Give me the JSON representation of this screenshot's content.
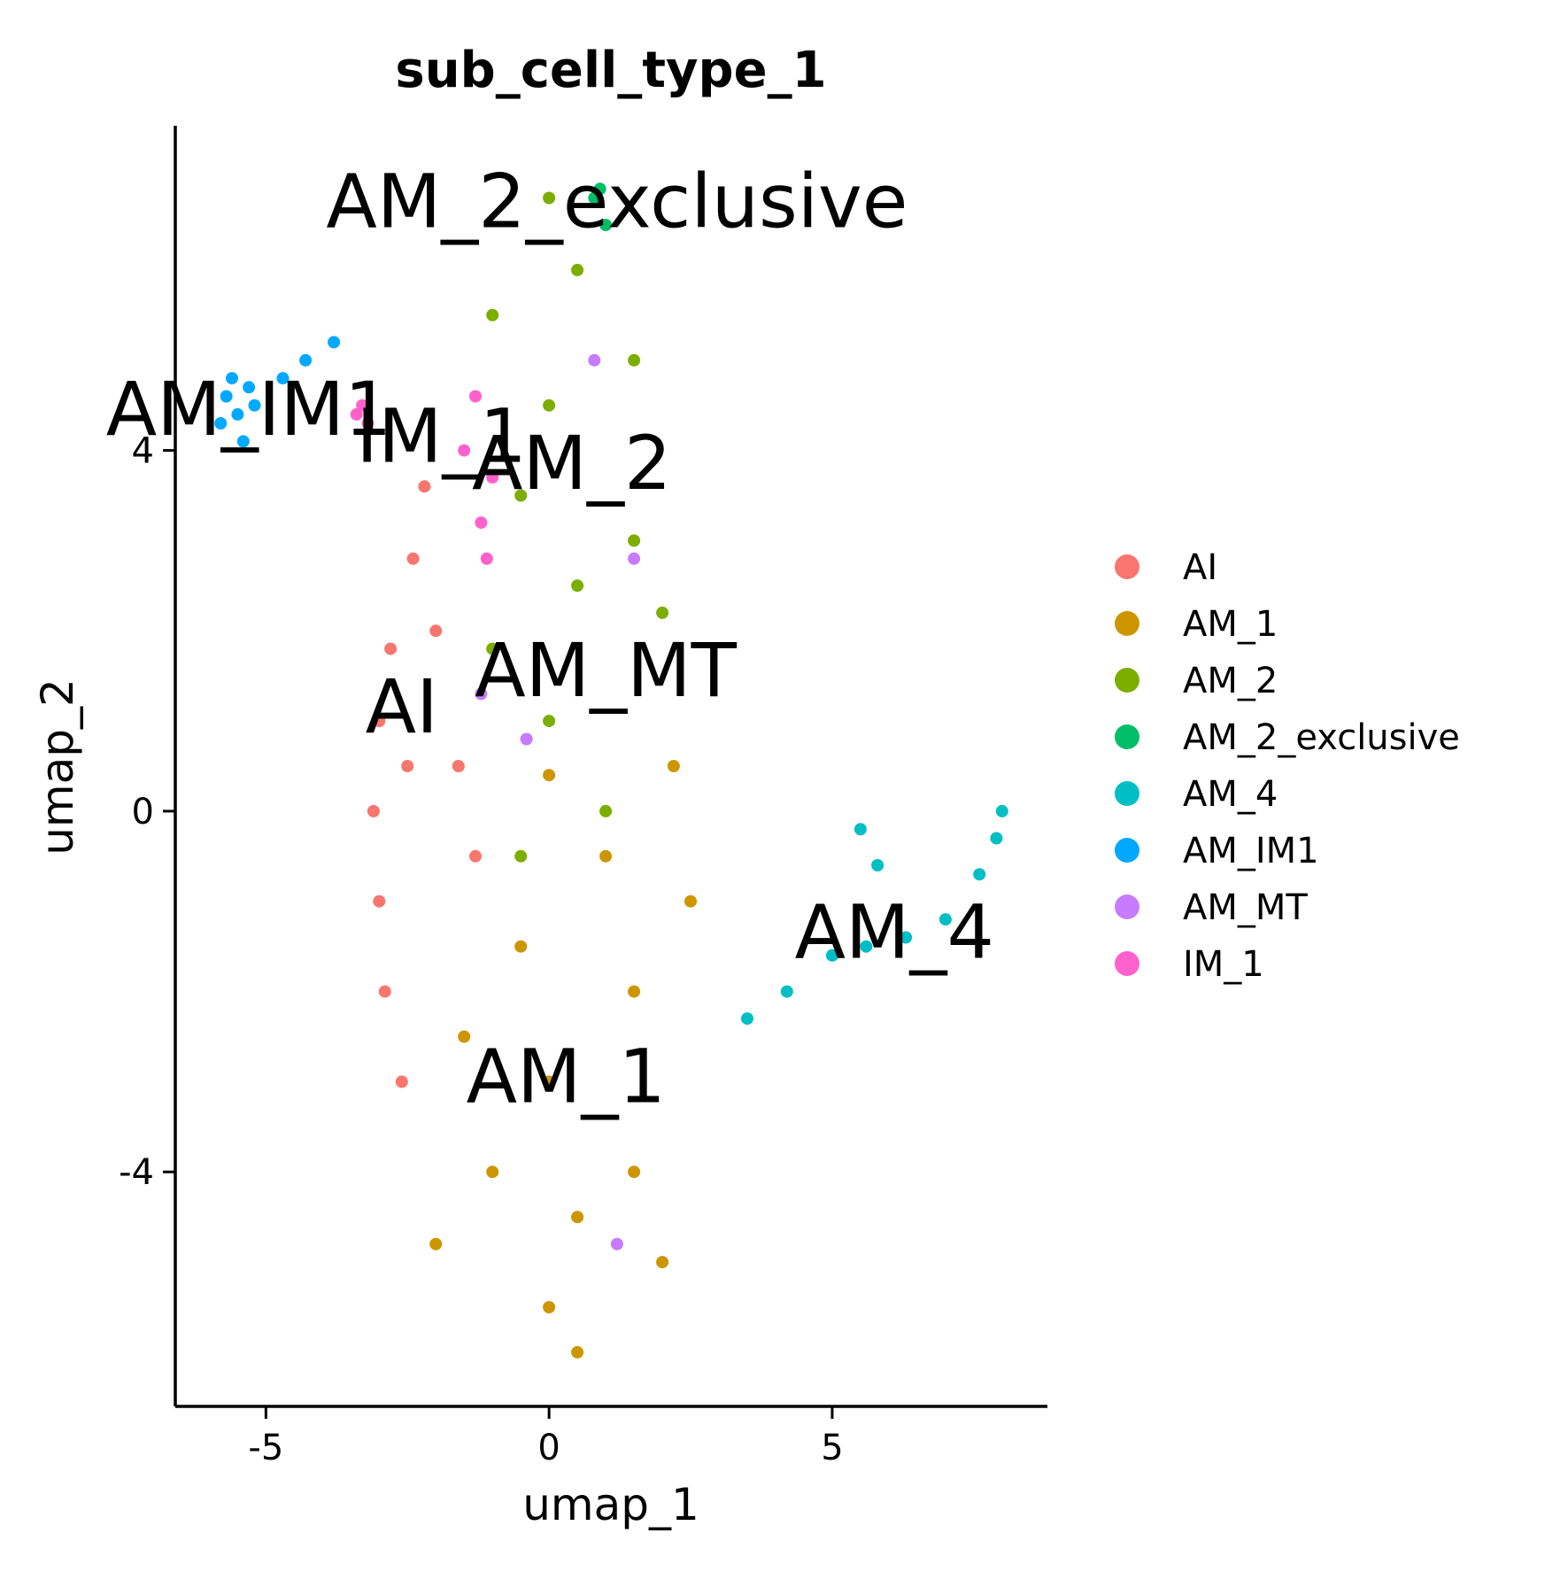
{
  "chart_data": {
    "type": "scatter",
    "title": "sub_cell_type_1",
    "xlabel": "umap_1",
    "ylabel": "umap_2",
    "xlim": [
      -6.6,
      8.8
    ],
    "ylim": [
      -6.6,
      7.6
    ],
    "x_ticks": [
      -5,
      0,
      5
    ],
    "x_tick_labels": [
      "-5",
      "0",
      "5"
    ],
    "y_ticks": [
      -4,
      0,
      4
    ],
    "y_tick_labels": [
      "-4",
      "0",
      "4"
    ],
    "grid": false,
    "legend_position": "right",
    "series": [
      {
        "name": "AI",
        "color": "#F8766D",
        "points": [
          [
            -2.8,
            1.8
          ],
          [
            -3.0,
            1.0
          ],
          [
            -3.1,
            0.0
          ],
          [
            -3.0,
            -1.0
          ],
          [
            -2.9,
            -2.0
          ],
          [
            -2.6,
            -3.0
          ],
          [
            -2.4,
            2.8
          ],
          [
            -2.2,
            3.6
          ],
          [
            -2.0,
            2.0
          ],
          [
            -1.6,
            0.5
          ],
          [
            -1.3,
            -0.5
          ],
          [
            -2.5,
            0.5
          ]
        ]
      },
      {
        "name": "AM_1",
        "color": "#CD9600",
        "points": [
          [
            0.0,
            -5.5
          ],
          [
            0.5,
            -4.5
          ],
          [
            -1.0,
            -4.0
          ],
          [
            1.5,
            -4.0
          ],
          [
            0.0,
            -3.0
          ],
          [
            -1.5,
            -2.5
          ],
          [
            1.5,
            -2.0
          ],
          [
            2.5,
            -1.0
          ],
          [
            1.0,
            -0.5
          ],
          [
            -0.5,
            -1.5
          ],
          [
            2.2,
            0.5
          ],
          [
            0.0,
            0.4
          ],
          [
            -2.0,
            -4.8
          ],
          [
            2.0,
            -5.0
          ],
          [
            0.5,
            -6.0
          ]
        ]
      },
      {
        "name": "AM_2",
        "color": "#7CAE00",
        "points": [
          [
            0.0,
            6.8
          ],
          [
            0.5,
            6.0
          ],
          [
            -1.0,
            5.5
          ],
          [
            1.5,
            5.0
          ],
          [
            0.0,
            4.5
          ],
          [
            -0.5,
            3.5
          ],
          [
            1.5,
            3.0
          ],
          [
            2.0,
            2.2
          ],
          [
            0.5,
            2.5
          ],
          [
            -1.0,
            1.8
          ],
          [
            0.0,
            1.0
          ],
          [
            -0.5,
            -0.5
          ],
          [
            1.0,
            0.0
          ]
        ]
      },
      {
        "name": "AM_2_exclusive",
        "color": "#00BE67",
        "points": [
          [
            0.8,
            6.8
          ],
          [
            1.0,
            6.5
          ],
          [
            0.9,
            6.9
          ]
        ]
      },
      {
        "name": "AM_4",
        "color": "#00BFC4",
        "points": [
          [
            3.5,
            -2.3
          ],
          [
            4.2,
            -2.0
          ],
          [
            5.0,
            -1.6
          ],
          [
            5.6,
            -1.5
          ],
          [
            6.3,
            -1.4
          ],
          [
            7.0,
            -1.2
          ],
          [
            7.6,
            -0.7
          ],
          [
            7.9,
            -0.3
          ],
          [
            8.0,
            0.0
          ],
          [
            5.8,
            -0.6
          ],
          [
            5.5,
            -0.2
          ]
        ]
      },
      {
        "name": "AM_IM1",
        "color": "#00A9FF",
        "points": [
          [
            -5.7,
            4.6
          ],
          [
            -5.5,
            4.4
          ],
          [
            -5.3,
            4.7
          ],
          [
            -5.8,
            4.3
          ],
          [
            -5.2,
            4.5
          ],
          [
            -5.6,
            4.8
          ],
          [
            -4.7,
            4.8
          ],
          [
            -4.3,
            5.0
          ],
          [
            -3.8,
            5.2
          ],
          [
            -5.4,
            4.1
          ]
        ]
      },
      {
        "name": "AM_MT",
        "color": "#C77CFF",
        "points": [
          [
            -1.2,
            1.3
          ],
          [
            0.8,
            5.0
          ],
          [
            1.5,
            2.8
          ],
          [
            -0.4,
            0.8
          ],
          [
            1.2,
            -4.8
          ]
        ]
      },
      {
        "name": "IM_1",
        "color": "#FF61CC",
        "points": [
          [
            -3.4,
            4.4
          ],
          [
            -3.2,
            4.3
          ],
          [
            -3.3,
            4.5
          ],
          [
            -1.5,
            4.0
          ],
          [
            -1.0,
            3.7
          ],
          [
            -1.2,
            3.2
          ],
          [
            -1.1,
            2.8
          ],
          [
            -1.3,
            4.6
          ]
        ]
      }
    ],
    "cluster_labels": [
      {
        "text": "AM_2_exclusive",
        "x": 1.2,
        "y": 6.7
      },
      {
        "text": "AM_IM1",
        "x": -5.3,
        "y": 4.4
      },
      {
        "text": "IM_1",
        "x": -1.9,
        "y": 4.1
      },
      {
        "text": "AM_2",
        "x": 0.4,
        "y": 3.8
      },
      {
        "text": "AM_MT",
        "x": 1.0,
        "y": 1.5
      },
      {
        "text": "AI",
        "x": -2.6,
        "y": 1.1
      },
      {
        "text": "AM_4",
        "x": 6.1,
        "y": -1.4
      },
      {
        "text": "AM_1",
        "x": 0.3,
        "y": -3.0
      }
    ]
  }
}
